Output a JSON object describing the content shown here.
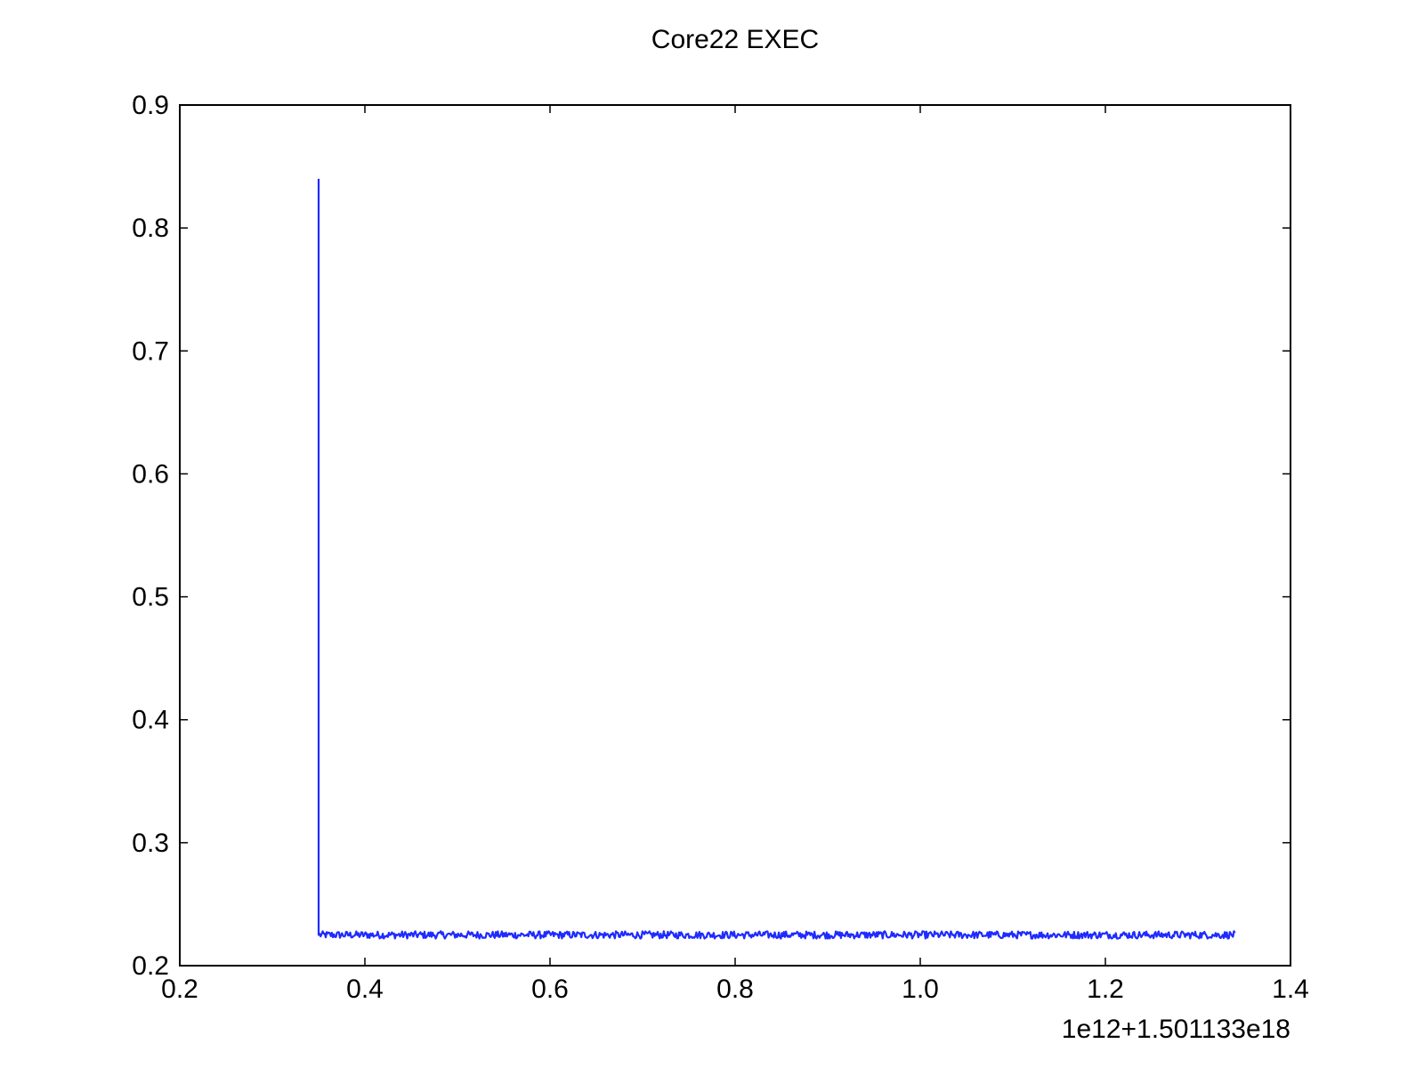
{
  "chart_data": {
    "type": "line",
    "title": "Core22 EXEC",
    "xlabel": "",
    "ylabel": "",
    "x_offset_label": "1e12+1.501133e18",
    "xlim": [
      0.2,
      1.4
    ],
    "ylim": [
      0.2,
      0.9
    ],
    "x_ticks": [
      0.2,
      0.4,
      0.6,
      0.8,
      1.0,
      1.2,
      1.4
    ],
    "x_tick_labels": [
      "0.2",
      "0.4",
      "0.6",
      "0.8",
      "1.0",
      "1.2",
      "1.4"
    ],
    "y_ticks": [
      0.2,
      0.3,
      0.4,
      0.5,
      0.6,
      0.7,
      0.8,
      0.9
    ],
    "y_tick_labels": [
      "0.2",
      "0.3",
      "0.4",
      "0.5",
      "0.6",
      "0.7",
      "0.8",
      "0.9"
    ],
    "grid": false,
    "legend": false,
    "series": [
      {
        "name": "Core22 EXEC",
        "color": "#1f2bff",
        "x_start": 0.35,
        "x_end": 1.34,
        "spike_value": 0.84,
        "baseline_value": 0.225,
        "noise_amplitude": 0.003,
        "points": [
          [
            0.35,
            0.84
          ],
          [
            0.35,
            0.226
          ],
          [
            0.4,
            0.226
          ],
          [
            0.5,
            0.226
          ],
          [
            0.6,
            0.225
          ],
          [
            0.7,
            0.225
          ],
          [
            0.8,
            0.226
          ],
          [
            0.9,
            0.225
          ],
          [
            1.0,
            0.225
          ],
          [
            1.1,
            0.226
          ],
          [
            1.2,
            0.225
          ],
          [
            1.3,
            0.226
          ],
          [
            1.34,
            0.226
          ]
        ]
      }
    ]
  }
}
